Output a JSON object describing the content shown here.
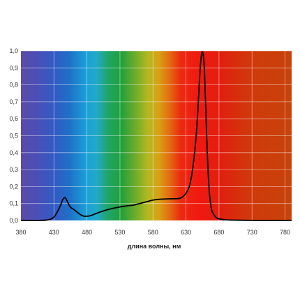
{
  "chart_data": {
    "type": "line",
    "title": "",
    "xlabel": "длина волны, нм",
    "ylabel": "",
    "xlim": [
      380,
      790
    ],
    "ylim": [
      0,
      1.0
    ],
    "x_ticks": [
      "380",
      "430",
      "480",
      "530",
      "580",
      "630",
      "680",
      "730",
      "780"
    ],
    "y_ticks": [
      "0,0",
      "0,1",
      "0,2",
      "0,3",
      "0,4",
      "0,5",
      "0,6",
      "0,7",
      "0,8",
      "0,9",
      "1,0"
    ],
    "grid": true,
    "background": "visible-spectrum gradient (violet → blue → cyan → green → yellow → red)",
    "series": [
      {
        "color": "#000000",
        "x": [
          380,
          400,
          410,
          420,
          425,
          430,
          435,
          440,
          443,
          446,
          448,
          450,
          453,
          456,
          460,
          465,
          470,
          475,
          480,
          485,
          490,
          500,
          510,
          520,
          530,
          540,
          550,
          560,
          570,
          580,
          590,
          600,
          610,
          620,
          625,
          630,
          635,
          640,
          645,
          648,
          650,
          652,
          654,
          656,
          658,
          660,
          662,
          664,
          666,
          668,
          670,
          675,
          680,
          690,
          700,
          720,
          740,
          760,
          780,
          790
        ],
        "y": [
          0.0,
          0.0,
          0.0,
          0.003,
          0.008,
          0.02,
          0.05,
          0.09,
          0.12,
          0.135,
          0.13,
          0.115,
          0.09,
          0.075,
          0.065,
          0.05,
          0.035,
          0.026,
          0.025,
          0.028,
          0.035,
          0.05,
          0.062,
          0.072,
          0.08,
          0.086,
          0.09,
          0.1,
          0.11,
          0.12,
          0.125,
          0.127,
          0.128,
          0.13,
          0.14,
          0.16,
          0.2,
          0.3,
          0.48,
          0.65,
          0.8,
          0.92,
          0.99,
          0.98,
          0.88,
          0.65,
          0.42,
          0.25,
          0.14,
          0.08,
          0.05,
          0.02,
          0.01,
          0.004,
          0.002,
          0.001,
          0.0,
          0.0,
          0.0,
          0.0
        ]
      }
    ]
  }
}
